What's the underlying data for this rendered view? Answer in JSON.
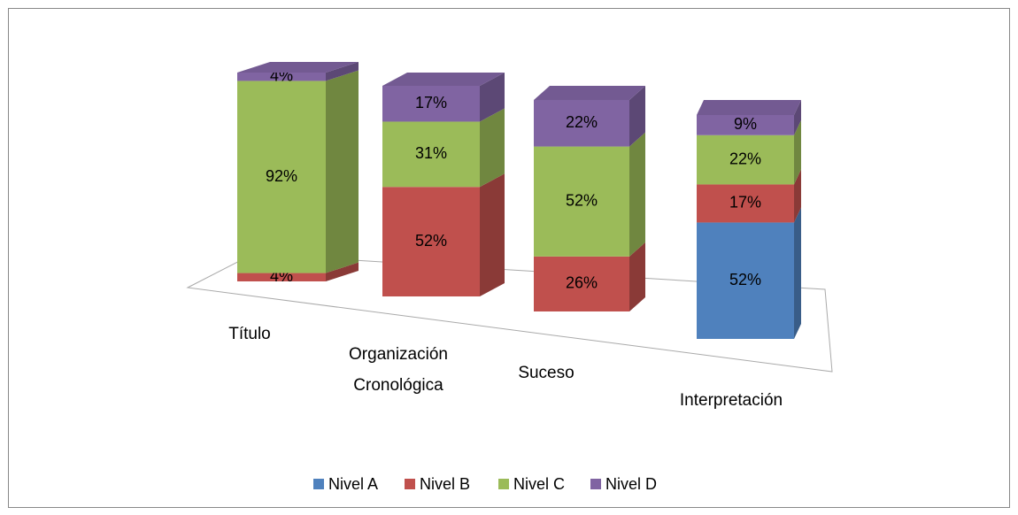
{
  "chart_data": {
    "type": "bar3d_stacked",
    "categories": [
      "Título",
      "Organización Cronológica",
      "Suceso",
      "Interpretación"
    ],
    "series": [
      {
        "name": "Nivel A",
        "color": "#4f81bd",
        "values": [
          0,
          0,
          0,
          52
        ],
        "value_labels": [
          null,
          null,
          null,
          "52%"
        ]
      },
      {
        "name": "Nivel B",
        "color": "#c0504d",
        "values": [
          4,
          52,
          26,
          17
        ],
        "value_labels": [
          "4%",
          "52%",
          "26%",
          "17%"
        ]
      },
      {
        "name": "Nivel C",
        "color": "#9bbb59",
        "values": [
          92,
          31,
          52,
          22
        ],
        "value_labels": [
          "92%",
          "31%",
          "52%",
          "22%"
        ]
      },
      {
        "name": "Nivel D",
        "color": "#8064a2",
        "values": [
          4,
          17,
          22,
          9
        ],
        "value_labels": [
          "4%",
          "17%",
          "22%",
          "9%"
        ]
      }
    ],
    "legend": "bottom"
  }
}
